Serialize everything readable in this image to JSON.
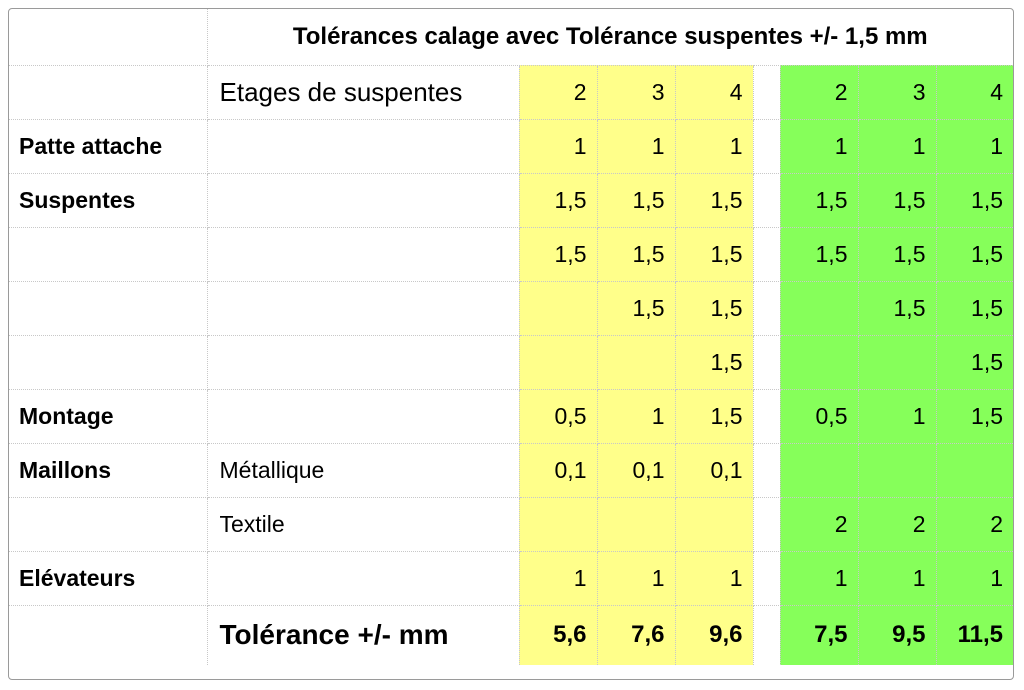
{
  "title": "Tolérances calage avec Tolérance suspentes +/- 1,5 mm",
  "etages_label": "Etages de suspentes",
  "groups": {
    "yellow": {
      "color": "#ffff8a",
      "etages": [
        "2",
        "3",
        "4"
      ]
    },
    "green": {
      "color": "#86ff5a",
      "etages": [
        "2",
        "3",
        "4"
      ]
    }
  },
  "rows": [
    {
      "label": "Patte attache",
      "sub": "",
      "yellow": [
        "1",
        "1",
        "1"
      ],
      "green": [
        "1",
        "1",
        "1"
      ]
    },
    {
      "label": "Suspentes",
      "sub": "",
      "yellow": [
        "1,5",
        "1,5",
        "1,5"
      ],
      "green": [
        "1,5",
        "1,5",
        "1,5"
      ]
    },
    {
      "label": "",
      "sub": "",
      "yellow": [
        "1,5",
        "1,5",
        "1,5"
      ],
      "green": [
        "1,5",
        "1,5",
        "1,5"
      ]
    },
    {
      "label": "",
      "sub": "",
      "yellow": [
        "",
        "1,5",
        "1,5"
      ],
      "green": [
        "",
        "1,5",
        "1,5"
      ]
    },
    {
      "label": "",
      "sub": "",
      "yellow": [
        "",
        "",
        "1,5"
      ],
      "green": [
        "",
        "",
        "1,5"
      ]
    },
    {
      "label": "Montage",
      "sub": "",
      "yellow": [
        "0,5",
        "1",
        "1,5"
      ],
      "green": [
        "0,5",
        "1",
        "1,5"
      ]
    },
    {
      "label": "Maillons",
      "sub": "Métallique",
      "yellow": [
        "0,1",
        "0,1",
        "0,1"
      ],
      "green": [
        "",
        "",
        ""
      ]
    },
    {
      "label": "",
      "sub": "Textile",
      "yellow": [
        "",
        "",
        ""
      ],
      "green": [
        "2",
        "2",
        "2"
      ]
    },
    {
      "label": "Elévateurs",
      "sub": "",
      "yellow": [
        "1",
        "1",
        "1"
      ],
      "green": [
        "1",
        "1",
        "1"
      ]
    }
  ],
  "total": {
    "label": "Tolérance +/- mm",
    "yellow": [
      "5,6",
      "7,6",
      "9,6"
    ],
    "green": [
      "7,5",
      "9,5",
      "11,5"
    ]
  }
}
